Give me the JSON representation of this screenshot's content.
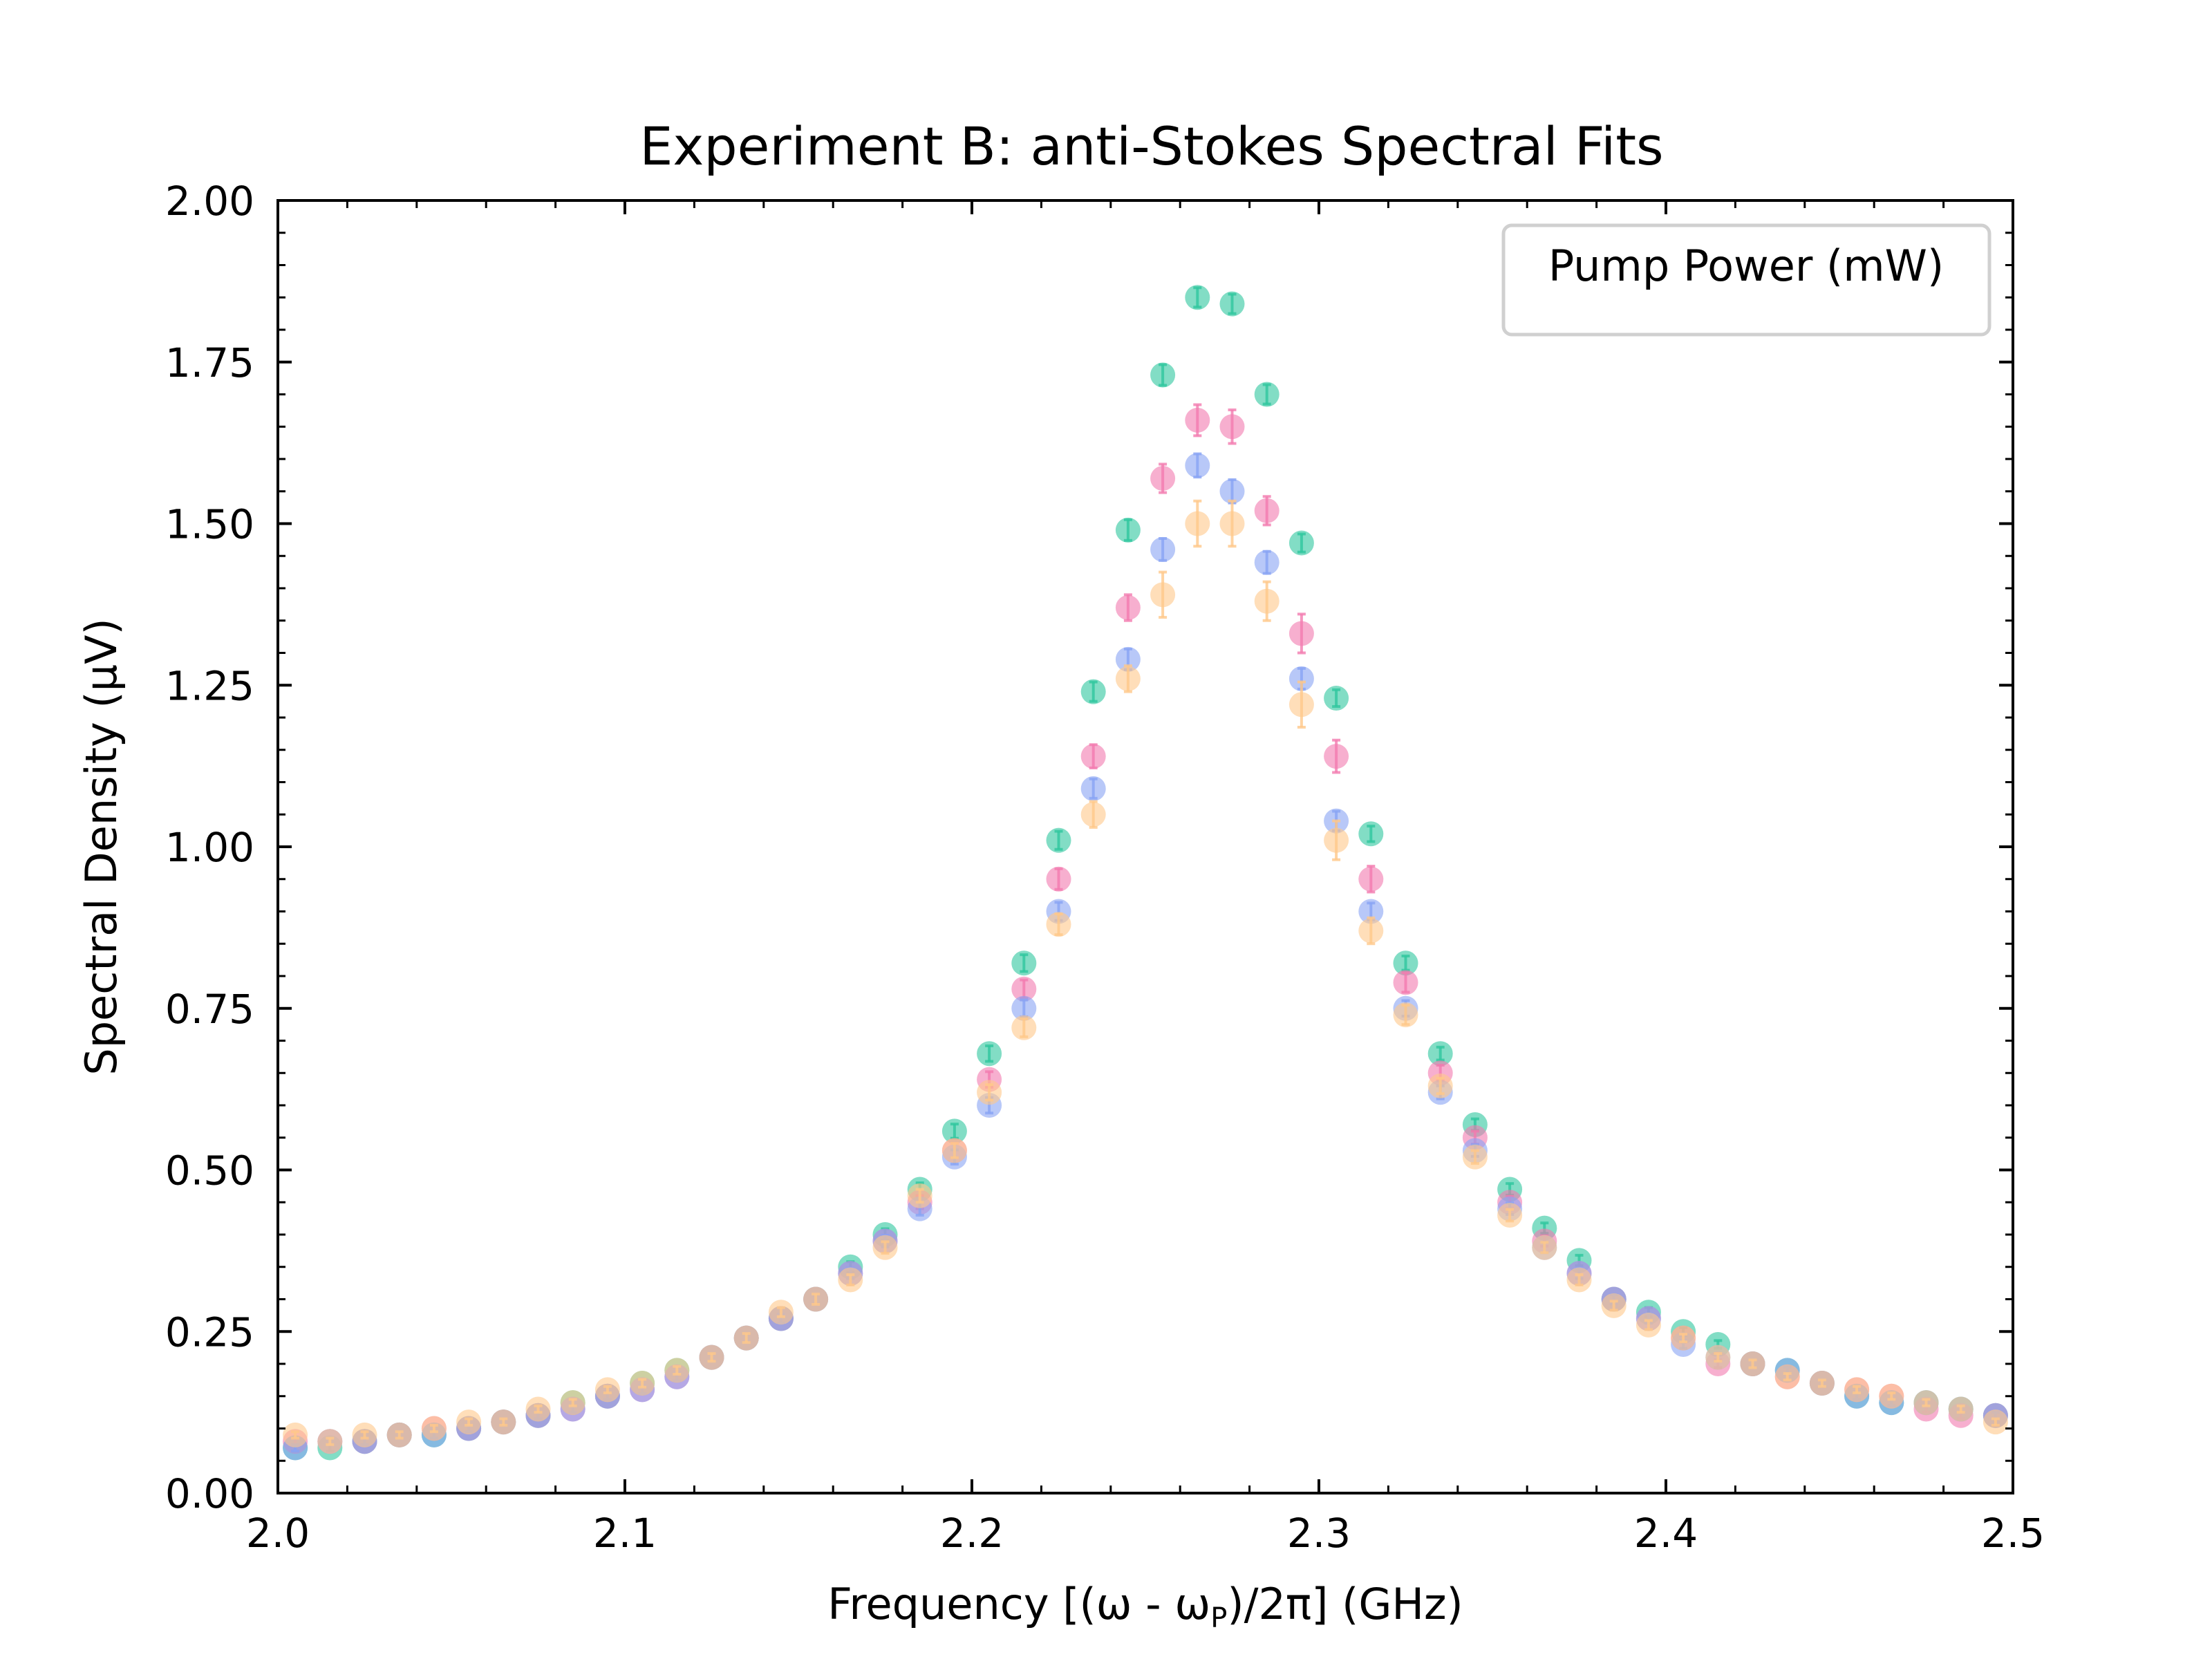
{
  "chart_data": {
    "type": "scatter",
    "title": "Experiment B: anti-Stokes Spectral Fits",
    "xlabel": "Frequency [(ω - ωP)/2π] (GHz)",
    "ylabel": "Spectral Density (μV)",
    "xlim": [
      2.0,
      2.5
    ],
    "ylim": [
      0.0,
      2.0
    ],
    "x_ticks": [
      "2.0",
      "2.1",
      "2.2",
      "2.3",
      "2.4",
      "2.5"
    ],
    "y_ticks": [
      "0.00",
      "0.25",
      "0.50",
      "0.75",
      "1.00",
      "1.25",
      "1.50",
      "1.75",
      "2.00"
    ],
    "grid": false,
    "legend": {
      "title": "Pump Power (mW)",
      "placement": "top-right",
      "entries": []
    },
    "x": [
      2.005,
      2.015,
      2.025,
      2.035,
      2.045,
      2.055,
      2.065,
      2.075,
      2.085,
      2.095,
      2.105,
      2.115,
      2.125,
      2.135,
      2.145,
      2.155,
      2.165,
      2.175,
      2.185,
      2.195,
      2.205,
      2.215,
      2.225,
      2.235,
      2.245,
      2.255,
      2.265,
      2.275,
      2.285,
      2.295,
      2.305,
      2.315,
      2.325,
      2.335,
      2.345,
      2.355,
      2.365,
      2.375,
      2.385,
      2.395,
      2.405,
      2.415,
      2.425,
      2.435,
      2.445,
      2.455,
      2.465,
      2.475,
      2.485,
      2.495
    ],
    "series": [
      {
        "color": "#2fc79e",
        "values": [
          0.07,
          0.07,
          0.08,
          0.09,
          0.09,
          0.1,
          0.11,
          0.12,
          0.14,
          0.15,
          0.17,
          0.19,
          0.21,
          0.24,
          0.27,
          0.3,
          0.35,
          0.4,
          0.47,
          0.56,
          0.68,
          0.82,
          1.01,
          1.24,
          1.49,
          1.73,
          1.85,
          1.84,
          1.7,
          1.47,
          1.23,
          1.02,
          0.82,
          0.68,
          0.57,
          0.47,
          0.41,
          0.36,
          0.3,
          0.28,
          0.25,
          0.23,
          0.2,
          0.19,
          0.17,
          0.15,
          0.14,
          0.14,
          0.13,
          0.12
        ],
        "errors": [
          0.005,
          0.005,
          0.005,
          0.005,
          0.005,
          0.005,
          0.005,
          0.005,
          0.005,
          0.005,
          0.006,
          0.006,
          0.006,
          0.007,
          0.007,
          0.008,
          0.008,
          0.009,
          0.01,
          0.011,
          0.012,
          0.013,
          0.014,
          0.015,
          0.016,
          0.016,
          0.015,
          0.015,
          0.015,
          0.014,
          0.013,
          0.012,
          0.011,
          0.01,
          0.009,
          0.009,
          0.008,
          0.008,
          0.007,
          0.007,
          0.006,
          0.006,
          0.006,
          0.005,
          0.005,
          0.005,
          0.005,
          0.005,
          0.005,
          0.005
        ]
      },
      {
        "color": "#f27aaf",
        "values": [
          0.08,
          0.08,
          0.08,
          0.09,
          0.1,
          0.1,
          0.11,
          0.12,
          0.13,
          0.15,
          0.16,
          0.18,
          0.21,
          0.24,
          0.27,
          0.3,
          0.34,
          0.39,
          0.45,
          0.53,
          0.64,
          0.78,
          0.95,
          1.14,
          1.37,
          1.57,
          1.66,
          1.65,
          1.52,
          1.33,
          1.14,
          0.95,
          0.79,
          0.65,
          0.55,
          0.45,
          0.39,
          0.34,
          0.3,
          0.27,
          0.24,
          0.2,
          0.2,
          0.18,
          0.17,
          0.16,
          0.15,
          0.13,
          0.12,
          0.12
        ],
        "errors": [
          0.005,
          0.005,
          0.005,
          0.005,
          0.005,
          0.005,
          0.005,
          0.005,
          0.005,
          0.005,
          0.006,
          0.006,
          0.006,
          0.007,
          0.007,
          0.008,
          0.008,
          0.009,
          0.01,
          0.011,
          0.012,
          0.014,
          0.016,
          0.018,
          0.02,
          0.022,
          0.024,
          0.026,
          0.022,
          0.03,
          0.025,
          0.02,
          0.015,
          0.012,
          0.01,
          0.009,
          0.008,
          0.008,
          0.007,
          0.007,
          0.006,
          0.006,
          0.006,
          0.005,
          0.005,
          0.005,
          0.005,
          0.005,
          0.005,
          0.005
        ]
      },
      {
        "color": "#88a4f4",
        "values": [
          0.07,
          0.08,
          0.08,
          0.09,
          0.09,
          0.1,
          0.11,
          0.12,
          0.13,
          0.15,
          0.16,
          0.18,
          0.21,
          0.24,
          0.27,
          0.3,
          0.34,
          0.39,
          0.44,
          0.52,
          0.6,
          0.75,
          0.9,
          1.09,
          1.29,
          1.46,
          1.59,
          1.55,
          1.44,
          1.26,
          1.04,
          0.9,
          0.75,
          0.62,
          0.53,
          0.44,
          0.38,
          0.34,
          0.3,
          0.27,
          0.23,
          0.21,
          0.2,
          0.19,
          0.17,
          0.15,
          0.14,
          0.14,
          0.13,
          0.12
        ],
        "errors": [
          0.005,
          0.005,
          0.005,
          0.005,
          0.005,
          0.005,
          0.005,
          0.005,
          0.005,
          0.005,
          0.006,
          0.006,
          0.006,
          0.007,
          0.007,
          0.008,
          0.008,
          0.009,
          0.01,
          0.011,
          0.012,
          0.013,
          0.014,
          0.015,
          0.016,
          0.017,
          0.018,
          0.018,
          0.017,
          0.016,
          0.015,
          0.013,
          0.012,
          0.01,
          0.009,
          0.009,
          0.008,
          0.008,
          0.007,
          0.007,
          0.006,
          0.006,
          0.006,
          0.005,
          0.005,
          0.005,
          0.005,
          0.005,
          0.005,
          0.005
        ]
      },
      {
        "color": "#ffc88a",
        "values": [
          0.09,
          0.08,
          0.09,
          0.09,
          0.1,
          0.11,
          0.11,
          0.13,
          0.14,
          0.16,
          0.17,
          0.19,
          0.21,
          0.24,
          0.28,
          0.3,
          0.33,
          0.38,
          0.46,
          0.53,
          0.62,
          0.72,
          0.88,
          1.05,
          1.26,
          1.39,
          1.5,
          1.5,
          1.38,
          1.22,
          1.01,
          0.87,
          0.74,
          0.63,
          0.52,
          0.43,
          0.38,
          0.33,
          0.29,
          0.26,
          0.24,
          0.21,
          0.2,
          0.18,
          0.17,
          0.16,
          0.15,
          0.14,
          0.13,
          0.11
        ],
        "errors": [
          0.005,
          0.005,
          0.005,
          0.005,
          0.005,
          0.005,
          0.005,
          0.005,
          0.005,
          0.005,
          0.006,
          0.006,
          0.006,
          0.007,
          0.007,
          0.008,
          0.008,
          0.009,
          0.01,
          0.011,
          0.012,
          0.014,
          0.016,
          0.02,
          0.02,
          0.035,
          0.035,
          0.035,
          0.03,
          0.035,
          0.03,
          0.02,
          0.015,
          0.012,
          0.01,
          0.009,
          0.008,
          0.008,
          0.007,
          0.007,
          0.006,
          0.006,
          0.006,
          0.005,
          0.005,
          0.005,
          0.005,
          0.005,
          0.005,
          0.005
        ]
      }
    ]
  }
}
